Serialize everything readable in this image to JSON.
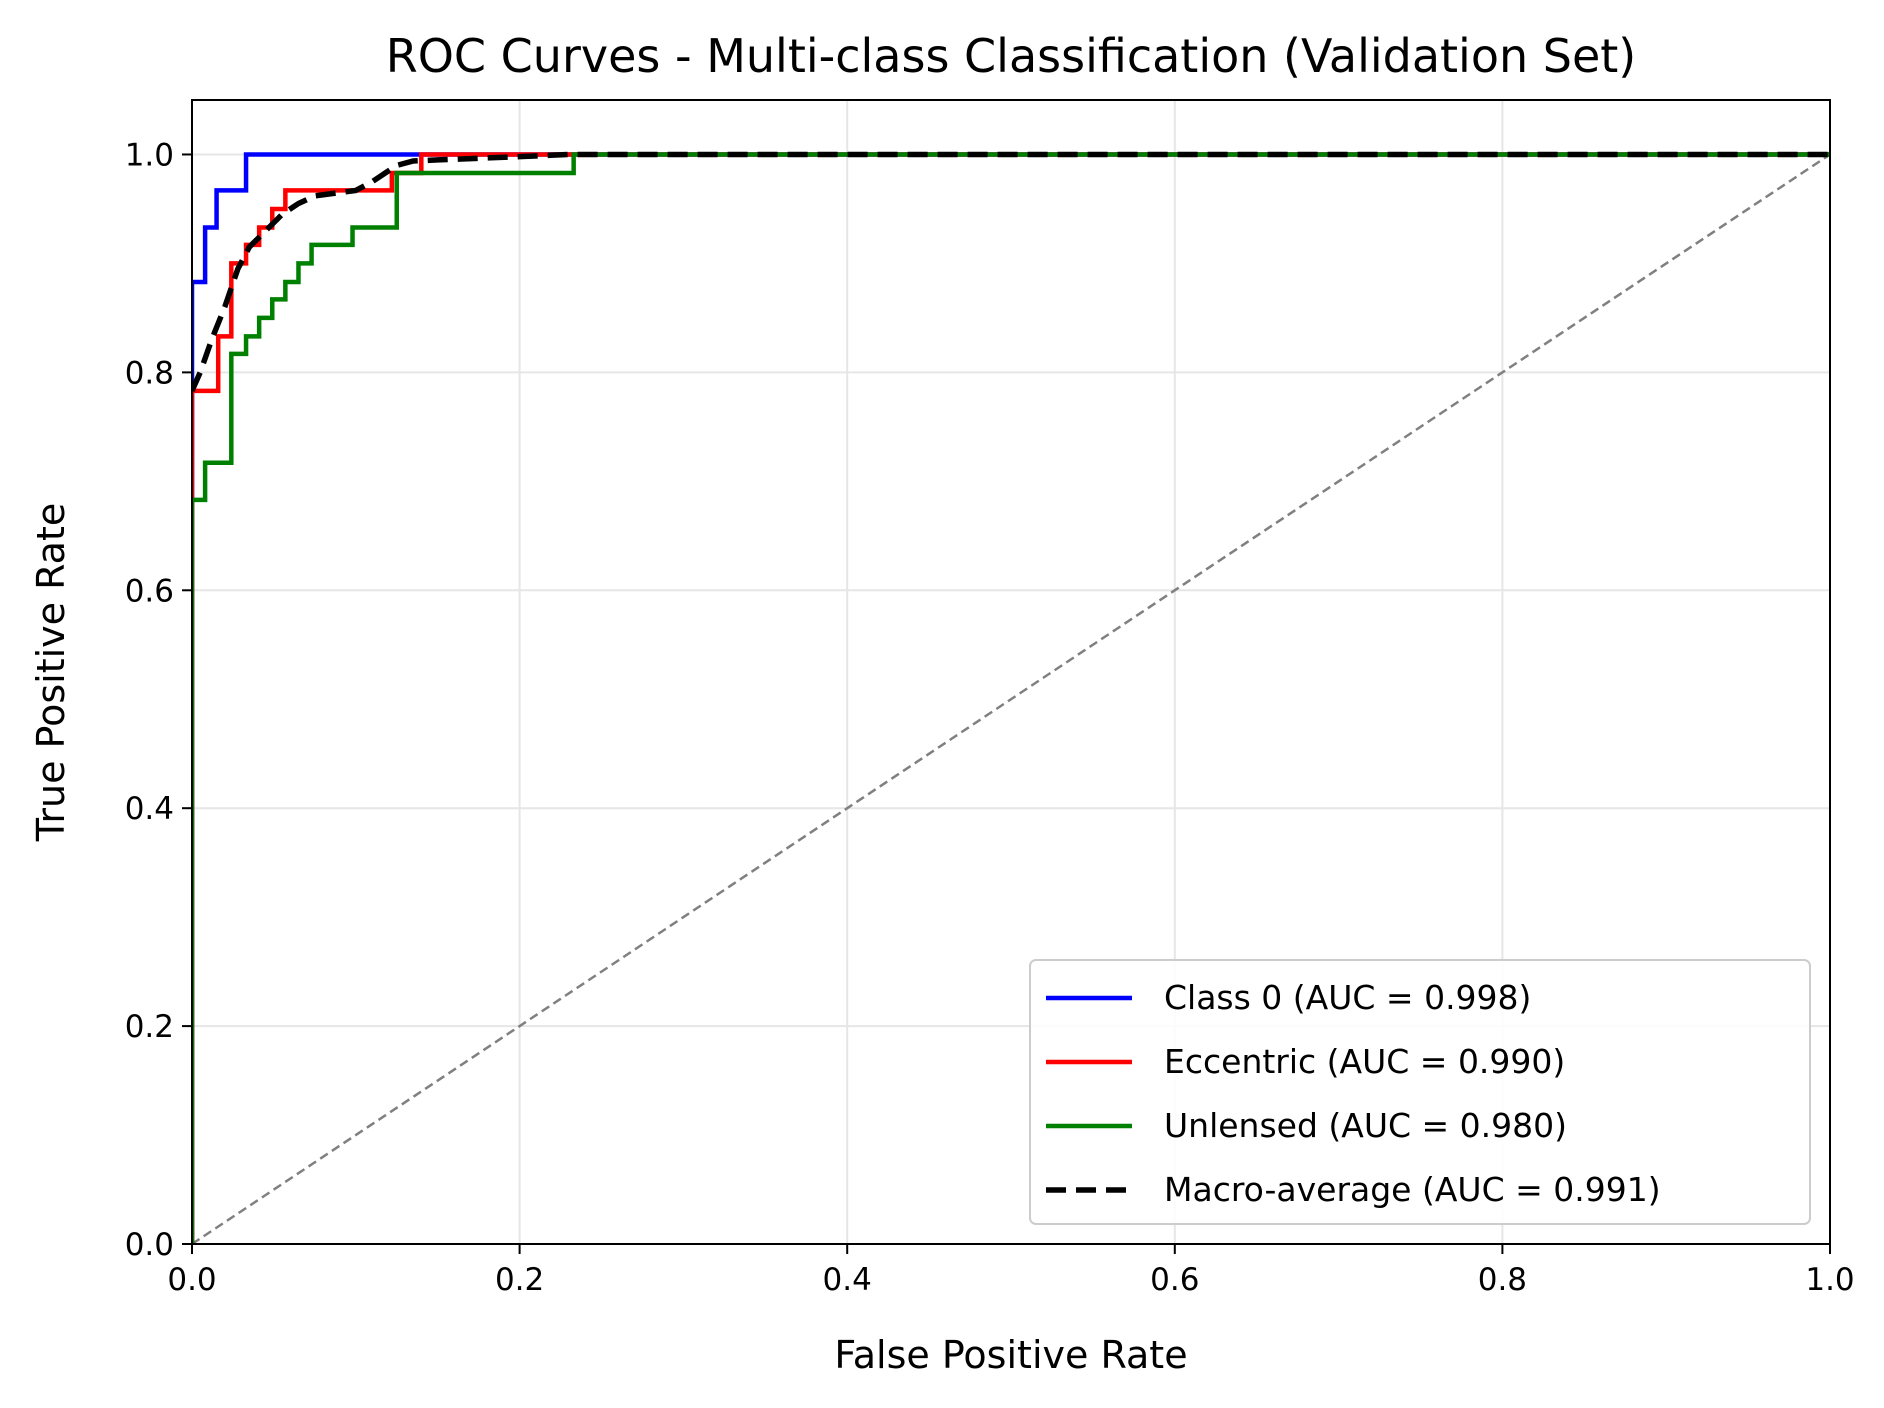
{
  "chart_data": {
    "type": "line",
    "title": "ROC Curves - Multi-class Classification (Validation Set)",
    "xlabel": "False Positive Rate",
    "ylabel": "True Positive Rate",
    "xlim": [
      0.0,
      1.0
    ],
    "ylim": [
      0.0,
      1.05
    ],
    "xticks": [
      "0.0",
      "0.2",
      "0.4",
      "0.6",
      "0.8",
      "1.0"
    ],
    "yticks": [
      "0.0",
      "0.2",
      "0.4",
      "0.6",
      "0.8",
      "1.0"
    ],
    "grid": true,
    "legend_position": "lower right",
    "series": [
      {
        "name": "Class 0 (AUC = 0.998)",
        "color": "#0000ff",
        "style": "solid",
        "x": [
          0,
          0,
          0.008,
          0.008,
          0.015,
          0.015,
          0.033,
          0.033,
          0.14,
          0.22,
          1.0
        ],
        "y": [
          0,
          0.883,
          0.883,
          0.933,
          0.933,
          0.967,
          0.967,
          1.0,
          1.0,
          1.0,
          1.0
        ]
      },
      {
        "name": "Eccentric (AUC = 0.990)",
        "color": "#ff0000",
        "style": "solid",
        "x": [
          0,
          0,
          0.0,
          0.0,
          0.016,
          0.016,
          0.024,
          0.024,
          0.033,
          0.033,
          0.041,
          0.041,
          0.049,
          0.049,
          0.057,
          0.057,
          0.122,
          0.122,
          0.14,
          0.14,
          0.22,
          0.22,
          1.0
        ],
        "y": [
          0,
          0.683,
          0.683,
          0.783,
          0.783,
          0.833,
          0.833,
          0.9,
          0.9,
          0.917,
          0.917,
          0.933,
          0.933,
          0.95,
          0.95,
          0.967,
          0.967,
          0.983,
          0.983,
          1.0,
          1.0,
          1.0,
          1.0
        ]
      },
      {
        "name": "Unlensed (AUC = 0.980)",
        "color": "#008000",
        "style": "solid",
        "x": [
          0,
          0,
          0.008,
          0.008,
          0.024,
          0.024,
          0.033,
          0.033,
          0.041,
          0.041,
          0.049,
          0.049,
          0.057,
          0.057,
          0.065,
          0.065,
          0.073,
          0.073,
          0.098,
          0.098,
          0.125,
          0.125,
          0.233,
          0.233,
          1.0
        ],
        "y": [
          0,
          0.683,
          0.683,
          0.717,
          0.717,
          0.817,
          0.817,
          0.833,
          0.833,
          0.85,
          0.85,
          0.867,
          0.867,
          0.883,
          0.883,
          0.9,
          0.9,
          0.917,
          0.917,
          0.933,
          0.933,
          0.983,
          0.983,
          1.0,
          1.0
        ]
      },
      {
        "name": "Macro-average (AUC = 0.991)",
        "color": "#000000",
        "style": "dashed",
        "x": [
          0,
          0.005,
          0.012,
          0.02,
          0.028,
          0.035,
          0.045,
          0.055,
          0.065,
          0.075,
          0.09,
          0.1,
          0.11,
          0.125,
          0.135,
          0.15,
          0.2,
          0.23,
          0.3,
          1.0
        ],
        "y": [
          0.783,
          0.8,
          0.83,
          0.86,
          0.895,
          0.915,
          0.93,
          0.945,
          0.955,
          0.962,
          0.965,
          0.967,
          0.975,
          0.99,
          0.994,
          0.995,
          0.998,
          1.0,
          1.0,
          1.0
        ]
      }
    ],
    "reference_line": {
      "color": "#808080",
      "style": "dashed",
      "x": [
        0,
        1
      ],
      "y": [
        0,
        1
      ]
    }
  }
}
